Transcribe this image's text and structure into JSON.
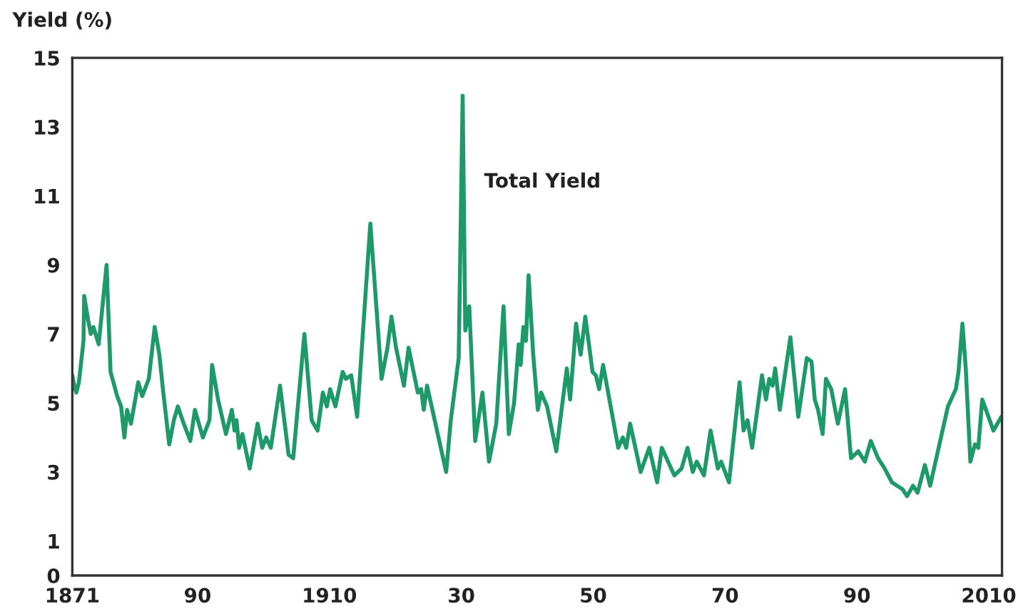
{
  "chart_data": {
    "type": "line",
    "ylabel": "Yield (%)",
    "annotations": [
      "Total Yield"
    ],
    "xlim": [
      1871,
      2012
    ],
    "xticks": [
      {
        "value": 1871,
        "label": "1871"
      },
      {
        "value": 1890,
        "label": "90"
      },
      {
        "value": 1910,
        "label": "1910"
      },
      {
        "value": 1930,
        "label": "30"
      },
      {
        "value": 1950,
        "label": "50"
      },
      {
        "value": 1970,
        "label": "70"
      },
      {
        "value": 1990,
        "label": "90"
      },
      {
        "value": 2010,
        "label": "2010"
      }
    ],
    "ylim": [
      0,
      15
    ],
    "yticks": [
      0,
      1,
      3,
      5,
      7,
      9,
      11,
      13,
      15
    ],
    "grid": false,
    "legend": false,
    "series": [
      {
        "color": "#1e9a6a",
        "x": [
          1871.0,
          1871.3,
          1871.6,
          1872.0,
          1872.7,
          1872.8,
          1873.4,
          1873.8,
          1874.2,
          1875.0,
          1876.2,
          1876.8,
          1877.8,
          1878.4,
          1878.9,
          1879.3,
          1879.9,
          1881.0,
          1881.6,
          1882.6,
          1883.5,
          1884.2,
          1884.8,
          1885.7,
          1886.4,
          1887.0,
          1887.9,
          1888.9,
          1889.6,
          1890.8,
          1891.8,
          1892.2,
          1893.1,
          1894.3,
          1895.2,
          1895.6,
          1895.9,
          1896.3,
          1896.8,
          1897.9,
          1899.1,
          1899.8,
          1900.4,
          1901.1,
          1902.5,
          1903.8,
          1904.5,
          1906.2,
          1907.3,
          1908.2,
          1909.0,
          1909.6,
          1910.1,
          1910.9,
          1912.0,
          1912.5,
          1913.3,
          1914.2,
          1916.2,
          1917.9,
          1918.8,
          1919.4,
          1920.1,
          1921.3,
          1922.0,
          1923.4,
          1923.9,
          1924.3,
          1924.8,
          1927.7,
          1928.4,
          1929.6,
          1930.2,
          1930.6,
          1931.2,
          1932.1,
          1933.2,
          1934.2,
          1935.3,
          1936.4,
          1937.2,
          1938.0,
          1938.7,
          1939.0,
          1939.4,
          1939.8,
          1940.2,
          1940.9,
          1941.6,
          1942.1,
          1943.0,
          1944.4,
          1946.0,
          1946.5,
          1947.4,
          1948.1,
          1948.8,
          1949.9,
          1950.4,
          1950.9,
          1951.5,
          1953.8,
          1954.5,
          1955.0,
          1955.6,
          1957.2,
          1958.5,
          1959.7,
          1960.4,
          1962.3,
          1963.4,
          1964.3,
          1965.1,
          1965.7,
          1966.8,
          1967.8,
          1968.9,
          1969.4,
          1970.6,
          1972.2,
          1972.8,
          1973.4,
          1974.1,
          1975.6,
          1976.2,
          1976.7,
          1977.2,
          1977.6,
          1978.3,
          1979.9,
          1981.1,
          1982.4,
          1983.1,
          1983.6,
          1984.1,
          1984.8,
          1985.3,
          1986.1,
          1987.1,
          1988.2,
          1989.1,
          1990.2,
          1991.2,
          1992.1,
          1993.2,
          1994.2,
          1995.3,
          1996.9,
          1997.6,
          1998.5,
          1999.2,
          2000.3,
          2001.1,
          2003.8,
          2005.0,
          2005.4,
          2006.0,
          2006.5,
          2007.2,
          2007.9,
          2008.4,
          2009.0,
          2010.7,
          2011.9
        ],
        "values": [
          5.8,
          5.5,
          5.3,
          5.6,
          6.8,
          8.1,
          7.4,
          7.0,
          7.2,
          6.7,
          9.0,
          5.9,
          5.2,
          4.9,
          4.0,
          4.8,
          4.4,
          5.6,
          5.2,
          5.7,
          7.2,
          6.4,
          5.3,
          3.8,
          4.5,
          4.9,
          4.4,
          3.9,
          4.8,
          4.0,
          4.5,
          6.1,
          5.1,
          4.1,
          4.8,
          4.2,
          4.5,
          3.7,
          4.1,
          3.1,
          4.4,
          3.7,
          4.0,
          3.7,
          5.5,
          3.5,
          3.4,
          7.0,
          4.5,
          4.2,
          5.3,
          4.9,
          5.4,
          4.9,
          5.9,
          5.7,
          5.8,
          4.6,
          10.2,
          5.7,
          6.6,
          7.5,
          6.6,
          5.5,
          6.6,
          5.3,
          5.4,
          4.8,
          5.5,
          3.0,
          4.5,
          6.3,
          13.9,
          7.1,
          7.8,
          3.9,
          5.3,
          3.3,
          4.4,
          7.8,
          4.1,
          5.0,
          6.7,
          6.1,
          7.2,
          6.8,
          8.7,
          6.4,
          4.8,
          5.3,
          4.9,
          3.6,
          6.0,
          5.1,
          7.3,
          6.4,
          7.5,
          5.9,
          5.8,
          5.4,
          6.1,
          3.7,
          4.0,
          3.7,
          4.4,
          3.0,
          3.7,
          2.7,
          3.7,
          2.9,
          3.1,
          3.7,
          3.0,
          3.3,
          2.9,
          4.2,
          3.1,
          3.3,
          2.7,
          5.6,
          4.2,
          4.5,
          3.7,
          5.8,
          5.1,
          5.7,
          5.5,
          6.0,
          4.8,
          6.9,
          4.6,
          6.3,
          6.2,
          5.1,
          4.8,
          4.1,
          5.7,
          5.4,
          4.4,
          5.4,
          3.4,
          3.6,
          3.3,
          3.9,
          3.4,
          3.1,
          2.7,
          2.5,
          2.3,
          2.6,
          2.4,
          3.2,
          2.6,
          4.9,
          5.4,
          5.9,
          7.3,
          6.0,
          3.3,
          3.8,
          3.7,
          5.1,
          4.2,
          4.6
        ]
      }
    ]
  }
}
